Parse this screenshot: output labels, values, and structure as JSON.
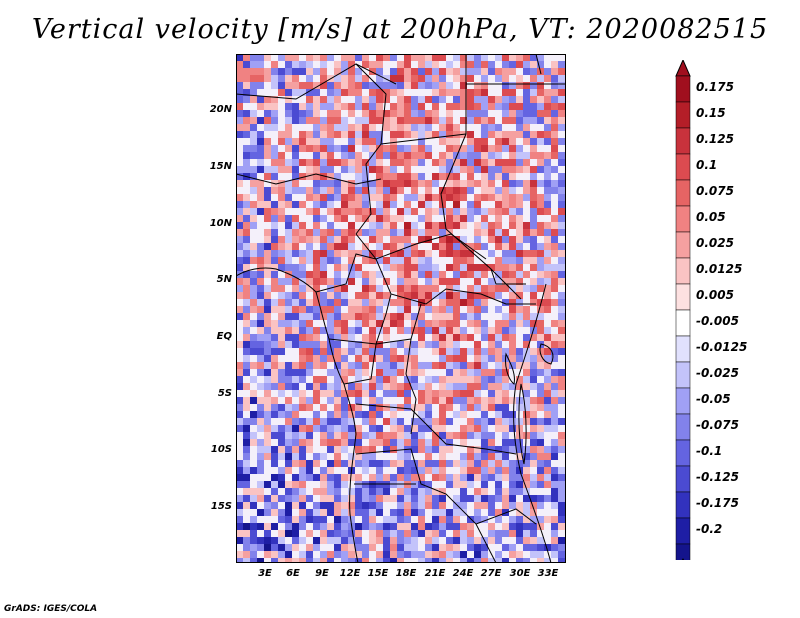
{
  "title": "Vertical velocity [m/s] at 200hPa, VT: 2020082515",
  "footer": "GrADS: IGES/COLA",
  "map": {
    "lon_range": [
      0,
      35
    ],
    "lat_range": [
      -20,
      25
    ],
    "lat_ticks": [
      "20N",
      "15N",
      "10N",
      "5N",
      "EQ",
      "5S",
      "10S",
      "15S"
    ],
    "lon_ticks": [
      "3E",
      "6E",
      "9E",
      "12E",
      "15E",
      "18E",
      "21E",
      "24E",
      "27E",
      "30E",
      "33E"
    ]
  },
  "colorbar": {
    "labels": [
      "0.175",
      "0.15",
      "0.125",
      "0.1",
      "0.075",
      "0.05",
      "0.025",
      "0.0125",
      "0.005",
      "-0.005",
      "-0.0125",
      "-0.025",
      "-0.05",
      "-0.075",
      "-0.1",
      "-0.125",
      "-0.175",
      "-0.2"
    ],
    "colors": [
      "#a00f1e",
      "#b41e28",
      "#c8323c",
      "#dc4b50",
      "#e66464",
      "#f08282",
      "#f5a0a0",
      "#fac3c3",
      "#fde1e1",
      "#ffffff",
      "#e1e1fd",
      "#c3c3fa",
      "#a0a0f5",
      "#8282eb",
      "#6464e1",
      "#4b4bd2",
      "#3232be",
      "#1e1ea5",
      "#14148c"
    ]
  }
}
